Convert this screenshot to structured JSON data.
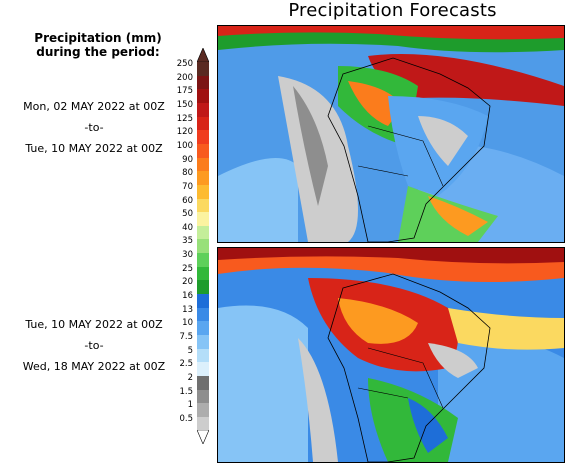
{
  "title": "Precipitation Forecasts",
  "legend": {
    "heading_line1": "Precipitation (mm)",
    "heading_line2": "during the period:",
    "levels": [
      {
        "label": "250",
        "color": "#5a2a22"
      },
      {
        "label": "200",
        "color": "#7c1414"
      },
      {
        "label": "175",
        "color": "#a01010"
      },
      {
        "label": "150",
        "color": "#c01818"
      },
      {
        "label": "125",
        "color": "#d82418"
      },
      {
        "label": "120",
        "color": "#f03c1e"
      },
      {
        "label": "100",
        "color": "#f85a1e"
      },
      {
        "label": "90",
        "color": "#fb7c1c"
      },
      {
        "label": "80",
        "color": "#fd9a20"
      },
      {
        "label": "70",
        "color": "#fdbb30"
      },
      {
        "label": "60",
        "color": "#fbd960"
      },
      {
        "label": "50",
        "color": "#fbf3a0"
      },
      {
        "label": "40",
        "color": "#c4ee9a"
      },
      {
        "label": "35",
        "color": "#98e07a"
      },
      {
        "label": "30",
        "color": "#5ed05a"
      },
      {
        "label": "25",
        "color": "#32b83a"
      },
      {
        "label": "20",
        "color": "#1e9c2c"
      },
      {
        "label": "16",
        "color": "#1e6ed8"
      },
      {
        "label": "13",
        "color": "#3a8ae6"
      },
      {
        "label": "10",
        "color": "#5aa6f0"
      },
      {
        "label": "7.5",
        "color": "#86c4f6"
      },
      {
        "label": "5",
        "color": "#b4def9"
      },
      {
        "label": "2.5",
        "color": "#dcf0fc"
      },
      {
        "label": "2",
        "color": "#6f6f6f"
      },
      {
        "label": "1.5",
        "color": "#8e8e8e"
      },
      {
        "label": "1",
        "color": "#adadad"
      },
      {
        "label": "0.5",
        "color": "#cdcdcd"
      }
    ]
  },
  "periods": [
    {
      "start": "Mon, 02 MAY 2022 at 00Z",
      "sep": "-to-",
      "end": "Tue, 10 MAY 2022 at 00Z"
    },
    {
      "start": "Tue, 10 MAY 2022 at 00Z",
      "sep": "-to-",
      "end": "Wed, 18 MAY 2022 at 00Z"
    }
  ]
}
